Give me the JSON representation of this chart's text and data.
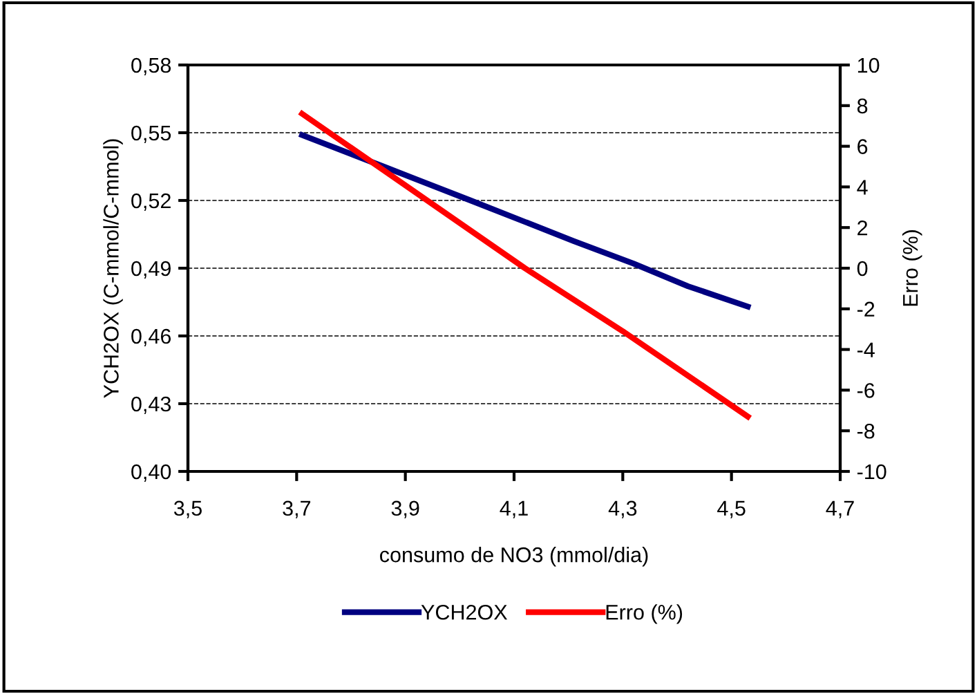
{
  "chart_data": {
    "type": "line",
    "xlabel": "consumo de NO3 (mmol/dia)",
    "ylabel": "YCH2OX (C-mmol/C-mmol)",
    "y2label": "Erro (%)",
    "xlim": [
      3.5,
      4.7
    ],
    "xticks": [
      {
        "value": 3.5,
        "label": "3,5"
      },
      {
        "value": 3.7,
        "label": "3,7"
      },
      {
        "value": 3.9,
        "label": "3,9"
      },
      {
        "value": 4.1,
        "label": "4,1"
      },
      {
        "value": 4.3,
        "label": "4,3"
      },
      {
        "value": 4.5,
        "label": "4,5"
      },
      {
        "value": 4.7,
        "label": "4,7"
      }
    ],
    "ylim": [
      0.4,
      0.58
    ],
    "yticks": [
      {
        "value": 0.4,
        "label": "0,40"
      },
      {
        "value": 0.43,
        "label": "0,43"
      },
      {
        "value": 0.46,
        "label": "0,46"
      },
      {
        "value": 0.49,
        "label": "0,49"
      },
      {
        "value": 0.52,
        "label": "0,52"
      },
      {
        "value": 0.55,
        "label": "0,55"
      },
      {
        "value": 0.58,
        "label": "0,58"
      }
    ],
    "y2lim": [
      -10,
      10
    ],
    "y2ticks": [
      -10,
      -8,
      -6,
      -4,
      -2,
      0,
      2,
      4,
      6,
      8,
      10
    ],
    "grid": "y",
    "legend": "bottom",
    "marker": "none",
    "line_style": "solid",
    "series": [
      {
        "name": "YCH2OX",
        "color": "#000080",
        "x": [
          3.71,
          3.86,
          4.02,
          4.21,
          4.32,
          4.42,
          4.53
        ],
        "values": [
          0.549,
          0.535,
          0.52,
          0.502,
          0.492,
          0.482,
          0.473
        ]
      },
      {
        "name": "Erro (%)",
        "color": "#ff0000",
        "axis": "y2",
        "x": [
          3.71,
          4.12,
          4.3,
          4.53
        ],
        "values": [
          7.6,
          0.0,
          -3.1,
          -7.3
        ]
      }
    ]
  }
}
